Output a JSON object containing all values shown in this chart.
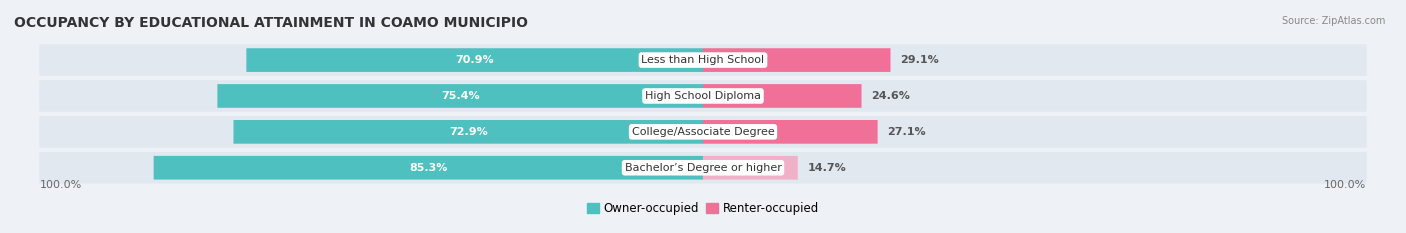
{
  "title": "OCCUPANCY BY EDUCATIONAL ATTAINMENT IN COAMO MUNICIPIO",
  "source": "Source: ZipAtlas.com",
  "categories": [
    "Less than High School",
    "High School Diploma",
    "College/Associate Degree",
    "Bachelor’s Degree or higher"
  ],
  "owner_values": [
    70.9,
    75.4,
    72.9,
    85.3
  ],
  "renter_values": [
    29.1,
    24.6,
    27.1,
    14.7
  ],
  "owner_color": "#4ec0c0",
  "renter_colors": [
    "#f07098",
    "#f07098",
    "#f07098",
    "#f0b0c8"
  ],
  "background_color": "#eef2f6",
  "bar_background": "#e2e8f0",
  "title_fontsize": 10,
  "label_fontsize": 8,
  "tick_fontsize": 8,
  "legend_fontsize": 8.5,
  "axis_label_left": "100.0%",
  "axis_label_right": "100.0%"
}
